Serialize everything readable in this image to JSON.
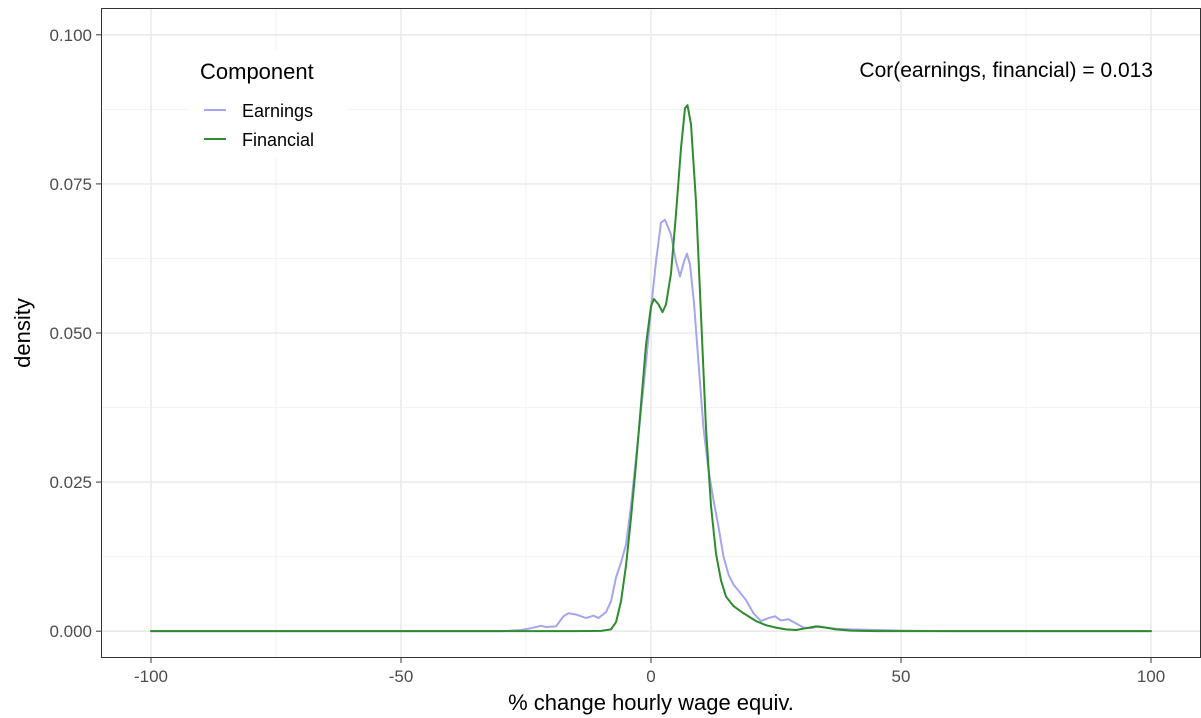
{
  "chart_data": {
    "type": "line",
    "subtype": "density",
    "xlabel": "% change hourly wage equiv.",
    "ylabel": "density",
    "xlim": [
      -110,
      110
    ],
    "ylim": [
      -0.0045,
      0.1045
    ],
    "x_ticks": [
      -100,
      -50,
      0,
      50,
      100
    ],
    "x_tick_labels": [
      "-100",
      "-50",
      "0",
      "50",
      "100"
    ],
    "y_ticks": [
      0.0,
      0.025,
      0.05,
      0.075,
      0.1
    ],
    "y_tick_labels": [
      "0.000",
      "0.025",
      "0.050",
      "0.075",
      "0.100"
    ],
    "grid": true,
    "legend": {
      "title": "Component",
      "position": "top-left",
      "entries": [
        "Earnings",
        "Financial"
      ]
    },
    "annotation": "Cor(earnings, financial) = 0.013",
    "series": [
      {
        "name": "Earnings",
        "color": "#a5a5f0",
        "points": [
          [
            -100,
            0
          ],
          [
            -30,
            0
          ],
          [
            -26,
            0.0002
          ],
          [
            -24,
            0.0005
          ],
          [
            -22,
            0.0009
          ],
          [
            -21,
            0.0007
          ],
          [
            -19,
            0.0008
          ],
          [
            -17.5,
            0.0025
          ],
          [
            -16.5,
            0.003
          ],
          [
            -15,
            0.0028
          ],
          [
            -13,
            0.0022
          ],
          [
            -11.5,
            0.0026
          ],
          [
            -10.5,
            0.0022
          ],
          [
            -9,
            0.0032
          ],
          [
            -8,
            0.005
          ],
          [
            -7,
            0.009
          ],
          [
            -6,
            0.0115
          ],
          [
            -5,
            0.0145
          ],
          [
            -4,
            0.021
          ],
          [
            -3,
            0.029
          ],
          [
            -2,
            0.037
          ],
          [
            -1,
            0.045
          ],
          [
            0,
            0.054
          ],
          [
            1,
            0.062
          ],
          [
            2,
            0.0685
          ],
          [
            2.8,
            0.069
          ],
          [
            4,
            0.0665
          ],
          [
            5,
            0.062
          ],
          [
            5.8,
            0.0595
          ],
          [
            6.6,
            0.062
          ],
          [
            7.2,
            0.0633
          ],
          [
            7.8,
            0.0615
          ],
          [
            8.6,
            0.055
          ],
          [
            9.5,
            0.045
          ],
          [
            10.5,
            0.034
          ],
          [
            11.5,
            0.027
          ],
          [
            12.5,
            0.022
          ],
          [
            13.5,
            0.0175
          ],
          [
            14.5,
            0.0125
          ],
          [
            15.5,
            0.0095
          ],
          [
            16.5,
            0.0078
          ],
          [
            17.5,
            0.0068
          ],
          [
            19,
            0.0052
          ],
          [
            20.5,
            0.003
          ],
          [
            22,
            0.0017
          ],
          [
            23.5,
            0.0022
          ],
          [
            24.8,
            0.0025
          ],
          [
            26,
            0.0018
          ],
          [
            27.5,
            0.002
          ],
          [
            29,
            0.0013
          ],
          [
            30.5,
            0.0006
          ],
          [
            32,
            0.0005
          ],
          [
            33.5,
            0.0008
          ],
          [
            35,
            0.0006
          ],
          [
            37,
            0.0004
          ],
          [
            40,
            0.0003
          ],
          [
            45,
            0.0002
          ],
          [
            50,
            0.0001
          ],
          [
            60,
            0
          ],
          [
            100,
            0
          ]
        ]
      },
      {
        "name": "Financial",
        "color": "#2e8b2e",
        "points": [
          [
            -100,
            0
          ],
          [
            -15,
            0
          ],
          [
            -10,
            5e-05
          ],
          [
            -8,
            0.0003
          ],
          [
            -7,
            0.0015
          ],
          [
            -6,
            0.005
          ],
          [
            -5,
            0.011
          ],
          [
            -4,
            0.019
          ],
          [
            -3,
            0.028
          ],
          [
            -2,
            0.038
          ],
          [
            -1,
            0.048
          ],
          [
            0,
            0.0545
          ],
          [
            0.6,
            0.0557
          ],
          [
            1.5,
            0.0548
          ],
          [
            2.3,
            0.0535
          ],
          [
            3,
            0.0548
          ],
          [
            4,
            0.06
          ],
          [
            5,
            0.07
          ],
          [
            6,
            0.081
          ],
          [
            6.8,
            0.0877
          ],
          [
            7.3,
            0.0882
          ],
          [
            8,
            0.085
          ],
          [
            9,
            0.072
          ],
          [
            10,
            0.053
          ],
          [
            11,
            0.034
          ],
          [
            12,
            0.021
          ],
          [
            13,
            0.013
          ],
          [
            14,
            0.0085
          ],
          [
            15,
            0.0058
          ],
          [
            16.5,
            0.0042
          ],
          [
            18.5,
            0.003
          ],
          [
            21,
            0.0017
          ],
          [
            23,
            0.001
          ],
          [
            25,
            0.0006
          ],
          [
            27,
            0.0003
          ],
          [
            29,
            0.0002
          ],
          [
            31,
            0.0005
          ],
          [
            33,
            0.0008
          ],
          [
            35,
            0.0006
          ],
          [
            37,
            0.0003
          ],
          [
            40,
            0.0001
          ],
          [
            45,
            0
          ],
          [
            100,
            0
          ]
        ]
      }
    ]
  }
}
